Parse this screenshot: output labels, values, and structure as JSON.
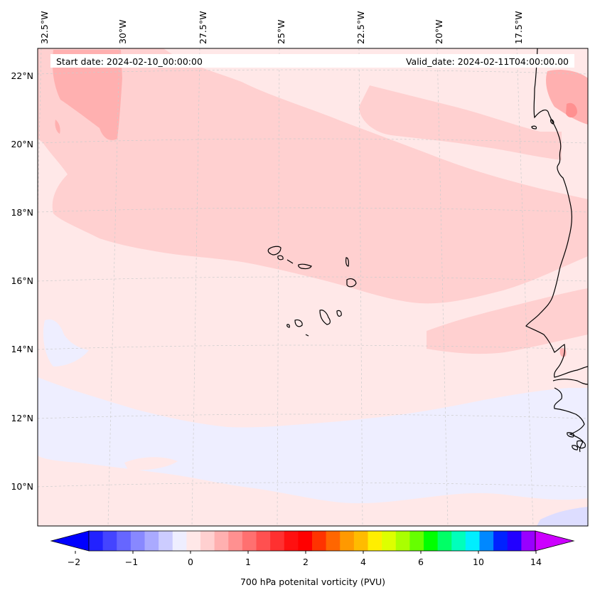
{
  "map": {
    "start_date_text": "Start date: 2024-02-10_00:00:00",
    "valid_date_text": "Valid_date: 2024-02-11T04:00:00.00",
    "longitude_labels": [
      "32.5°W",
      "30°W",
      "27.5°W",
      "25°W",
      "22.5°W",
      "20°W",
      "17.5°W"
    ],
    "latitude_labels": [
      "22°N",
      "20°N",
      "18°N",
      "16°N",
      "14°N",
      "12°N",
      "10°N"
    ],
    "extent": {
      "lon_min": -32.6,
      "lon_max": -15.3,
      "lat_min": 8.9,
      "lat_max": 22.8
    },
    "colors": {
      "background_light_pink": "#ffe8e8",
      "band_pink": "#ffd0d0",
      "patch_darker_pink": "#ffb0b0",
      "low_lavender": "#eeeeff",
      "coastline": "#000000",
      "gridline": "#cccccc"
    }
  },
  "colorbar": {
    "label": "700 hPa potenital vorticity (PVU)",
    "tick_labels": [
      "−2",
      "−1",
      "0",
      "1",
      "2",
      "4",
      "6",
      "10",
      "14"
    ],
    "colors": [
      "#0000ff",
      "#2222ff",
      "#4444ff",
      "#6666ff",
      "#8888ff",
      "#aaaaff",
      "#ccccff",
      "#eeeeff",
      "#ffe8e8",
      "#ffd0d0",
      "#ffb0b0",
      "#ff9090",
      "#ff7070",
      "#ff5050",
      "#ff3030",
      "#ff1010",
      "#ff0000",
      "#ff3300",
      "#ff6600",
      "#ff9900",
      "#ffbb00",
      "#ffee00",
      "#ddff00",
      "#aaff00",
      "#66ff00",
      "#00ff00",
      "#00ff66",
      "#00ffbb",
      "#00eeff",
      "#0088ff",
      "#0022ff",
      "#2200ff",
      "#9900ff",
      "#cc00ff"
    ]
  }
}
